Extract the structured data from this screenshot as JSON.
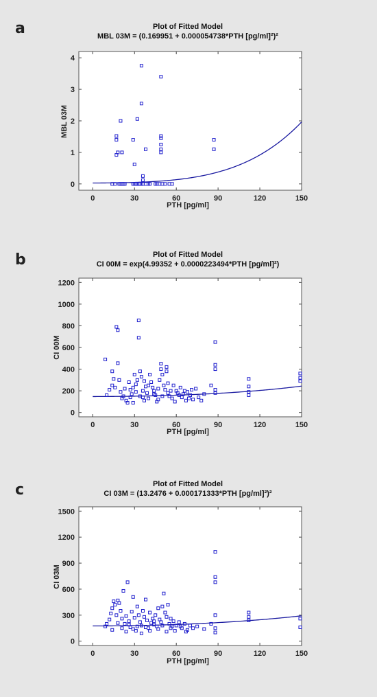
{
  "panels": [
    {
      "letter": "a",
      "title": "Plot of Fitted Model",
      "subtitle": "MBL 03M = (0.169951 + 0.000054738*PTH [pg/ml]²)²"
    },
    {
      "letter": "b",
      "title": "Plot of Fitted Model",
      "subtitle": "CI 00M = exp(4.99352 + 0.0000223494*PTH [pg/ml]²)"
    },
    {
      "letter": "c",
      "title": "Plot of Fitted Model",
      "subtitle": "CI 03M = (13.2476 + 0.000171333*PTH [pg/ml]²)²"
    }
  ],
  "chart_data": [
    {
      "type": "scatter",
      "xlabel": "PTH [pg/ml]",
      "ylabel": "MBL 03M",
      "xlim": [
        -10,
        150
      ],
      "ylim": [
        -0.2,
        4.2
      ],
      "xticks": [
        0,
        30,
        60,
        90,
        120,
        150
      ],
      "yticks": [
        0,
        1,
        2,
        3,
        4
      ],
      "fit": {
        "kind": "sq",
        "a": 0.169951,
        "b": 5.4738e-05
      },
      "points": [
        [
          14,
          0
        ],
        [
          16,
          0
        ],
        [
          19,
          0
        ],
        [
          20,
          0
        ],
        [
          21,
          0
        ],
        [
          22,
          0
        ],
        [
          23,
          0
        ],
        [
          29,
          0
        ],
        [
          30,
          0
        ],
        [
          31,
          0
        ],
        [
          32,
          0
        ],
        [
          33,
          0
        ],
        [
          34,
          0
        ],
        [
          35,
          0
        ],
        [
          36,
          0
        ],
        [
          38,
          0
        ],
        [
          40,
          0
        ],
        [
          41,
          0
        ],
        [
          45,
          0
        ],
        [
          46,
          0
        ],
        [
          48,
          0
        ],
        [
          50,
          0
        ],
        [
          52,
          0
        ],
        [
          55,
          0
        ],
        [
          57,
          0
        ],
        [
          36,
          0.12
        ],
        [
          36,
          0.25
        ],
        [
          30,
          0.62
        ],
        [
          17,
          0.92
        ],
        [
          18,
          1.0
        ],
        [
          21,
          1.0
        ],
        [
          17,
          1.4
        ],
        [
          17,
          1.52
        ],
        [
          29,
          1.4
        ],
        [
          20,
          2.0
        ],
        [
          32,
          2.06
        ],
        [
          38,
          1.1
        ],
        [
          35,
          2.55
        ],
        [
          35,
          3.75
        ],
        [
          49,
          1.0
        ],
        [
          49,
          1.1
        ],
        [
          49,
          1.25
        ],
        [
          49,
          1.45
        ],
        [
          49,
          1.52
        ],
        [
          49,
          3.4
        ],
        [
          87,
          1.1
        ],
        [
          87,
          1.4
        ]
      ]
    },
    {
      "type": "scatter",
      "xlabel": "PTH [pg/ml]",
      "ylabel": "CI 00M",
      "xlim": [
        -10,
        150
      ],
      "ylim": [
        -40,
        1240
      ],
      "xticks": [
        0,
        30,
        60,
        90,
        120,
        150
      ],
      "yticks": [
        0,
        200,
        400,
        600,
        800,
        1000,
        1200
      ],
      "fit": {
        "kind": "exp",
        "a": 4.99352,
        "b": 2.23494e-05
      },
      "points": [
        [
          9,
          490
        ],
        [
          14,
          380
        ],
        [
          15,
          310
        ],
        [
          17,
          790
        ],
        [
          18,
          760
        ],
        [
          18,
          455
        ],
        [
          14,
          250
        ],
        [
          12,
          210
        ],
        [
          20,
          190
        ],
        [
          22,
          150
        ],
        [
          24,
          110
        ],
        [
          26,
          280
        ],
        [
          27,
          210
        ],
        [
          28,
          170
        ],
        [
          29,
          230
        ],
        [
          29,
          90
        ],
        [
          30,
          350
        ],
        [
          31,
          260
        ],
        [
          32,
          300
        ],
        [
          33,
          850
        ],
        [
          33,
          690
        ],
        [
          34,
          380
        ],
        [
          35,
          330
        ],
        [
          36,
          200
        ],
        [
          36,
          140
        ],
        [
          37,
          290
        ],
        [
          38,
          240
        ],
        [
          39,
          180
        ],
        [
          40,
          130
        ],
        [
          41,
          350
        ],
        [
          42,
          280
        ],
        [
          43,
          230
        ],
        [
          44,
          200
        ],
        [
          45,
          160
        ],
        [
          46,
          100
        ],
        [
          47,
          120
        ],
        [
          48,
          300
        ],
        [
          49,
          450
        ],
        [
          49,
          400
        ],
        [
          50,
          350
        ],
        [
          51,
          250
        ],
        [
          52,
          210
        ],
        [
          53,
          420
        ],
        [
          53,
          380
        ],
        [
          54,
          180
        ],
        [
          55,
          150
        ],
        [
          56,
          200
        ],
        [
          58,
          250
        ],
        [
          59,
          100
        ],
        [
          60,
          200
        ],
        [
          62,
          160
        ],
        [
          63,
          230
        ],
        [
          65,
          170
        ],
        [
          67,
          110
        ],
        [
          68,
          190
        ],
        [
          70,
          160
        ],
        [
          72,
          120
        ],
        [
          74,
          220
        ],
        [
          78,
          110
        ],
        [
          80,
          170
        ],
        [
          85,
          250
        ],
        [
          88,
          650
        ],
        [
          88,
          440
        ],
        [
          88,
          400
        ],
        [
          88,
          210
        ],
        [
          88,
          180
        ],
        [
          112,
          310
        ],
        [
          112,
          240
        ],
        [
          112,
          190
        ],
        [
          112,
          160
        ],
        [
          149,
          360
        ],
        [
          149,
          320
        ],
        [
          149,
          290
        ],
        [
          10,
          160
        ],
        [
          16,
          230
        ],
        [
          19,
          300
        ],
        [
          21,
          130
        ],
        [
          23,
          220
        ],
        [
          25,
          90
        ],
        [
          27,
          140
        ],
        [
          31,
          190
        ],
        [
          34,
          150
        ],
        [
          37,
          110
        ],
        [
          40,
          250
        ],
        [
          44,
          170
        ],
        [
          47,
          220
        ],
        [
          50,
          150
        ],
        [
          54,
          270
        ],
        [
          57,
          130
        ],
        [
          61,
          180
        ],
        [
          64,
          140
        ],
        [
          66,
          200
        ],
        [
          69,
          130
        ],
        [
          71,
          210
        ],
        [
          76,
          140
        ]
      ]
    },
    {
      "type": "scatter",
      "xlabel": "PTH [pg/ml]",
      "ylabel": "CI 03M",
      "xlim": [
        -10,
        150
      ],
      "ylim": [
        -50,
        1550
      ],
      "xticks": [
        0,
        30,
        60,
        90,
        120,
        150
      ],
      "yticks": [
        0,
        300,
        600,
        900,
        1200,
        1500
      ],
      "fit": {
        "kind": "sq",
        "a": 13.2476,
        "b": 0.000171333
      },
      "points": [
        [
          9,
          170
        ],
        [
          12,
          250
        ],
        [
          13,
          320
        ],
        [
          14,
          380
        ],
        [
          15,
          460
        ],
        [
          16,
          420
        ],
        [
          17,
          300
        ],
        [
          18,
          470
        ],
        [
          19,
          440
        ],
        [
          20,
          350
        ],
        [
          21,
          260
        ],
        [
          22,
          580
        ],
        [
          23,
          200
        ],
        [
          24,
          290
        ],
        [
          25,
          680
        ],
        [
          26,
          230
        ],
        [
          27,
          160
        ],
        [
          28,
          340
        ],
        [
          29,
          510
        ],
        [
          30,
          270
        ],
        [
          31,
          120
        ],
        [
          32,
          400
        ],
        [
          33,
          300
        ],
        [
          34,
          220
        ],
        [
          35,
          180
        ],
        [
          36,
          350
        ],
        [
          37,
          280
        ],
        [
          38,
          480
        ],
        [
          39,
          240
        ],
        [
          40,
          150
        ],
        [
          41,
          330
        ],
        [
          42,
          210
        ],
        [
          43,
          260
        ],
        [
          44,
          190
        ],
        [
          45,
          300
        ],
        [
          46,
          170
        ],
        [
          47,
          380
        ],
        [
          48,
          250
        ],
        [
          49,
          220
        ],
        [
          50,
          400
        ],
        [
          51,
          550
        ],
        [
          52,
          330
        ],
        [
          53,
          280
        ],
        [
          54,
          420
        ],
        [
          55,
          200
        ],
        [
          56,
          260
        ],
        [
          57,
          170
        ],
        [
          58,
          230
        ],
        [
          60,
          180
        ],
        [
          62,
          220
        ],
        [
          64,
          150
        ],
        [
          66,
          200
        ],
        [
          68,
          130
        ],
        [
          70,
          180
        ],
        [
          72,
          150
        ],
        [
          75,
          170
        ],
        [
          80,
          140
        ],
        [
          85,
          200
        ],
        [
          88,
          1030
        ],
        [
          88,
          740
        ],
        [
          88,
          680
        ],
        [
          88,
          300
        ],
        [
          88,
          150
        ],
        [
          88,
          100
        ],
        [
          112,
          330
        ],
        [
          112,
          280
        ],
        [
          112,
          240
        ],
        [
          149,
          260
        ],
        [
          149,
          160
        ],
        [
          10,
          200
        ],
        [
          14,
          130
        ],
        [
          18,
          210
        ],
        [
          21,
          150
        ],
        [
          24,
          110
        ],
        [
          26,
          190
        ],
        [
          29,
          140
        ],
        [
          32,
          170
        ],
        [
          35,
          90
        ],
        [
          38,
          160
        ],
        [
          41,
          120
        ],
        [
          44,
          230
        ],
        [
          47,
          140
        ],
        [
          50,
          180
        ],
        [
          53,
          110
        ],
        [
          56,
          150
        ],
        [
          59,
          120
        ],
        [
          63,
          170
        ],
        [
          67,
          110
        ]
      ]
    }
  ]
}
